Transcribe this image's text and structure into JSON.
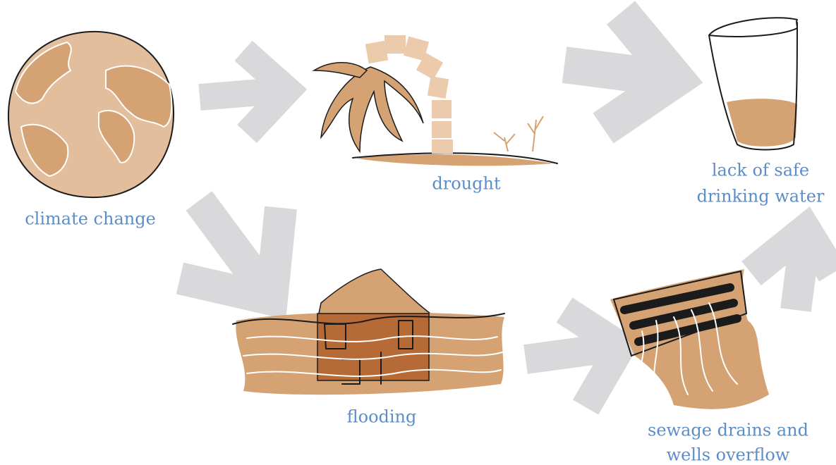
{
  "nodes": [
    {
      "label": [
        "climate change"
      ]
    },
    {
      "label": [
        "drought"
      ]
    },
    {
      "label": [
        "lack of safe",
        "drinking water"
      ]
    },
    {
      "label": [
        "flooding"
      ]
    },
    {
      "label": [
        "sewage drains and",
        "wells overflow"
      ]
    }
  ]
}
